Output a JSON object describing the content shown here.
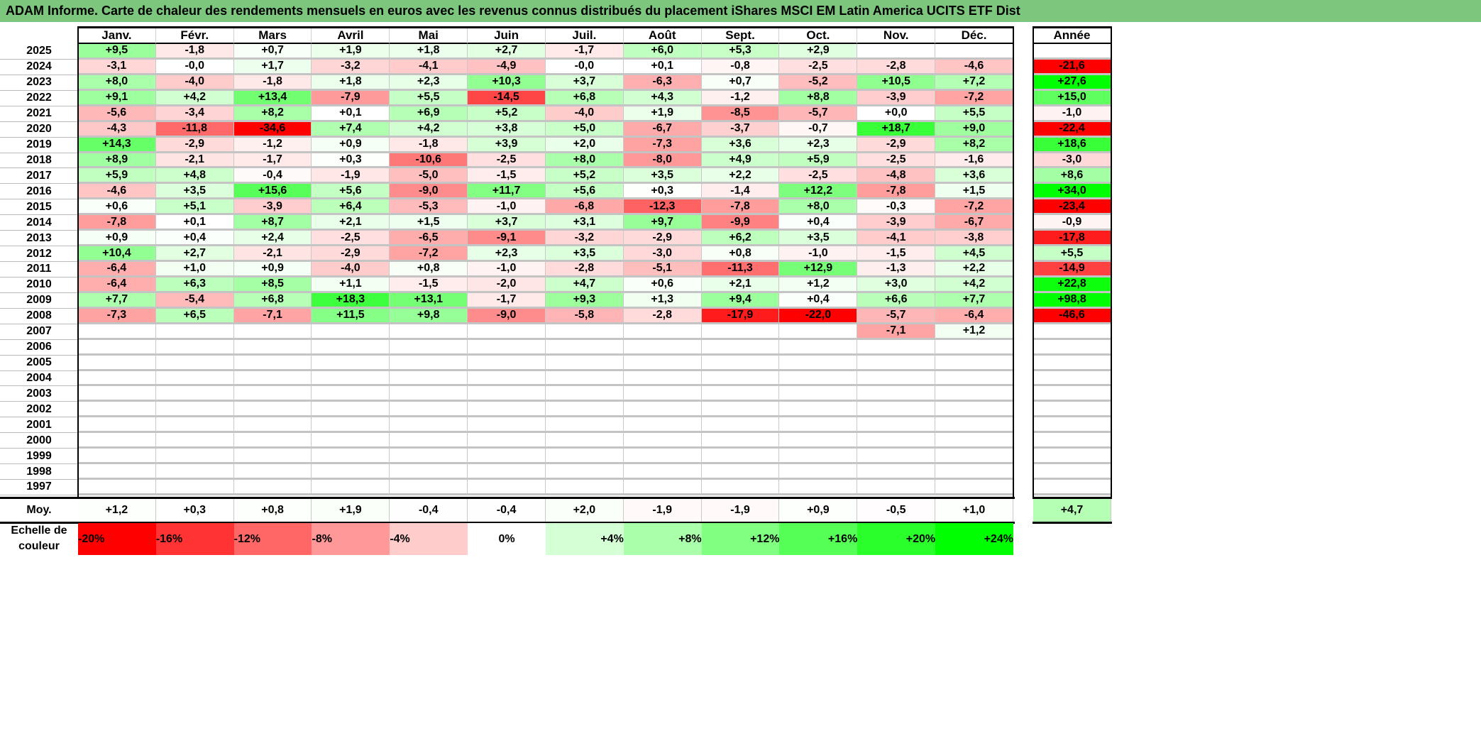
{
  "title": "ADAM Informe. Carte de chaleur des rendements mensuels en euros avec les revenus connus distribués du placement iShares MSCI EM Latin America UCITS ETF Dist",
  "months": [
    "Janv.",
    "Févr.",
    "Mars",
    "Avril",
    "Mai",
    "Juin",
    "Juil.",
    "Août",
    "Sept.",
    "Oct.",
    "Nov.",
    "Déc."
  ],
  "annual_header": "Année",
  "rows": [
    {
      "year": "2025",
      "values": [
        "+9,5",
        "-1,8",
        "+0,7",
        "+1,9",
        "+1,8",
        "+2,7",
        "-1,7",
        "+6,0",
        "+5,3",
        "+2,9",
        "",
        ""
      ],
      "annual": ""
    },
    {
      "year": "2024",
      "values": [
        "-3,1",
        "-0,0",
        "+1,7",
        "-3,2",
        "-4,1",
        "-4,9",
        "-0,0",
        "+0,1",
        "-0,8",
        "-2,5",
        "-2,8",
        "-4,6"
      ],
      "annual": "-21,6"
    },
    {
      "year": "2023",
      "values": [
        "+8,0",
        "-4,0",
        "-1,8",
        "+1,8",
        "+2,3",
        "+10,3",
        "+3,7",
        "-6,3",
        "+0,7",
        "-5,2",
        "+10,5",
        "+7,2"
      ],
      "annual": "+27,6"
    },
    {
      "year": "2022",
      "values": [
        "+9,1",
        "+4,2",
        "+13,4",
        "-7,9",
        "+5,5",
        "-14,5",
        "+6,8",
        "+4,3",
        "-1,2",
        "+8,8",
        "-3,9",
        "-7,2"
      ],
      "annual": "+15,0"
    },
    {
      "year": "2021",
      "values": [
        "-5,6",
        "-3,4",
        "+8,2",
        "+0,1",
        "+6,9",
        "+5,2",
        "-4,0",
        "+1,9",
        "-8,5",
        "-5,7",
        "+0,0",
        "+5,5"
      ],
      "annual": "-1,0"
    },
    {
      "year": "2020",
      "values": [
        "-4,3",
        "-11,8",
        "-34,6",
        "+7,4",
        "+4,2",
        "+3,8",
        "+5,0",
        "-6,7",
        "-3,7",
        "-0,7",
        "+18,7",
        "+9,0"
      ],
      "annual": "-22,4"
    },
    {
      "year": "2019",
      "values": [
        "+14,3",
        "-2,9",
        "-1,2",
        "+0,9",
        "-1,8",
        "+3,9",
        "+2,0",
        "-7,3",
        "+3,6",
        "+2,3",
        "-2,9",
        "+8,2"
      ],
      "annual": "+18,6"
    },
    {
      "year": "2018",
      "values": [
        "+8,9",
        "-2,1",
        "-1,7",
        "+0,3",
        "-10,6",
        "-2,5",
        "+8,0",
        "-8,0",
        "+4,9",
        "+5,9",
        "-2,5",
        "-1,6"
      ],
      "annual": "-3,0"
    },
    {
      "year": "2017",
      "values": [
        "+5,9",
        "+4,8",
        "-0,4",
        "-1,9",
        "-5,0",
        "-1,5",
        "+5,2",
        "+3,5",
        "+2,2",
        "-2,5",
        "-4,8",
        "+3,6"
      ],
      "annual": "+8,6"
    },
    {
      "year": "2016",
      "values": [
        "-4,6",
        "+3,5",
        "+15,6",
        "+5,6",
        "-9,0",
        "+11,7",
        "+5,6",
        "+0,3",
        "-1,4",
        "+12,2",
        "-7,8",
        "+1,5"
      ],
      "annual": "+34,0"
    },
    {
      "year": "2015",
      "values": [
        "+0,6",
        "+5,1",
        "-3,9",
        "+6,4",
        "-5,3",
        "-1,0",
        "-6,8",
        "-12,3",
        "-7,8",
        "+8,0",
        "-0,3",
        "-7,2"
      ],
      "annual": "-23,4"
    },
    {
      "year": "2014",
      "values": [
        "-7,8",
        "+0,1",
        "+8,7",
        "+2,1",
        "+1,5",
        "+3,7",
        "+3,1",
        "+9,7",
        "-9,9",
        "+0,4",
        "-3,9",
        "-6,7"
      ],
      "annual": "-0,9"
    },
    {
      "year": "2013",
      "values": [
        "+0,9",
        "+0,4",
        "+2,4",
        "-2,5",
        "-6,5",
        "-9,1",
        "-3,2",
        "-2,9",
        "+6,2",
        "+3,5",
        "-4,1",
        "-3,8"
      ],
      "annual": "-17,8"
    },
    {
      "year": "2012",
      "values": [
        "+10,4",
        "+2,7",
        "-2,1",
        "-2,9",
        "-7,2",
        "+2,3",
        "+3,5",
        "-3,0",
        "+0,8",
        "-1,0",
        "-1,5",
        "+4,5"
      ],
      "annual": "+5,5"
    },
    {
      "year": "2011",
      "values": [
        "-6,4",
        "+1,0",
        "+0,9",
        "-4,0",
        "+0,8",
        "-1,0",
        "-2,8",
        "-5,1",
        "-11,3",
        "+12,9",
        "-1,3",
        "+2,2"
      ],
      "annual": "-14,9"
    },
    {
      "year": "2010",
      "values": [
        "-6,4",
        "+6,3",
        "+8,5",
        "+1,1",
        "-1,5",
        "-2,0",
        "+4,7",
        "+0,6",
        "+2,1",
        "+1,2",
        "+3,0",
        "+4,2"
      ],
      "annual": "+22,8"
    },
    {
      "year": "2009",
      "values": [
        "+7,7",
        "-5,4",
        "+6,8",
        "+18,3",
        "+13,1",
        "-1,7",
        "+9,3",
        "+1,3",
        "+9,4",
        "+0,4",
        "+6,6",
        "+7,7"
      ],
      "annual": "+98,8"
    },
    {
      "year": "2008",
      "values": [
        "-7,3",
        "+6,5",
        "-7,1",
        "+11,5",
        "+9,8",
        "-9,0",
        "-5,8",
        "-2,8",
        "-17,9",
        "-22,0",
        "-5,7",
        "-6,4"
      ],
      "annual": "-46,6"
    },
    {
      "year": "2007",
      "values": [
        "",
        "",
        "",
        "",
        "",
        "",
        "",
        "",
        "",
        "",
        "-7,1",
        "+1,2"
      ],
      "annual": ""
    },
    {
      "year": "2006",
      "values": [
        "",
        "",
        "",
        "",
        "",
        "",
        "",
        "",
        "",
        "",
        "",
        ""
      ],
      "annual": ""
    },
    {
      "year": "2005",
      "values": [
        "",
        "",
        "",
        "",
        "",
        "",
        "",
        "",
        "",
        "",
        "",
        ""
      ],
      "annual": ""
    },
    {
      "year": "2004",
      "values": [
        "",
        "",
        "",
        "",
        "",
        "",
        "",
        "",
        "",
        "",
        "",
        ""
      ],
      "annual": ""
    },
    {
      "year": "2003",
      "values": [
        "",
        "",
        "",
        "",
        "",
        "",
        "",
        "",
        "",
        "",
        "",
        ""
      ],
      "annual": ""
    },
    {
      "year": "2002",
      "values": [
        "",
        "",
        "",
        "",
        "",
        "",
        "",
        "",
        "",
        "",
        "",
        ""
      ],
      "annual": ""
    },
    {
      "year": "2001",
      "values": [
        "",
        "",
        "",
        "",
        "",
        "",
        "",
        "",
        "",
        "",
        "",
        ""
      ],
      "annual": ""
    },
    {
      "year": "2000",
      "values": [
        "",
        "",
        "",
        "",
        "",
        "",
        "",
        "",
        "",
        "",
        "",
        ""
      ],
      "annual": ""
    },
    {
      "year": "1999",
      "values": [
        "",
        "",
        "",
        "",
        "",
        "",
        "",
        "",
        "",
        "",
        "",
        ""
      ],
      "annual": ""
    },
    {
      "year": "1998",
      "values": [
        "",
        "",
        "",
        "",
        "",
        "",
        "",
        "",
        "",
        "",
        "",
        ""
      ],
      "annual": ""
    },
    {
      "year": "1997",
      "values": [
        "",
        "",
        "",
        "",
        "",
        "",
        "",
        "",
        "",
        "",
        "",
        ""
      ],
      "annual": ""
    }
  ],
  "average": {
    "label": "Moy.",
    "values": [
      "+1,2",
      "+0,3",
      "+0,8",
      "+1,9",
      "-0,4",
      "-0,4",
      "+2,0",
      "-1,9",
      "-1,9",
      "+0,9",
      "-0,5",
      "+1,0"
    ],
    "annual": "+4,7"
  },
  "scale": {
    "label": "Echelle de couleur",
    "steps": [
      {
        "label": "-20%",
        "color": "#ff0000"
      },
      {
        "label": "-16%",
        "color": "#ff3333"
      },
      {
        "label": "-12%",
        "color": "#ff6666"
      },
      {
        "label": "-8%",
        "color": "#ff9999"
      },
      {
        "label": "-4%",
        "color": "#ffcccc"
      },
      {
        "label": "0%",
        "color": "#ffffff"
      },
      {
        "label": "+4%",
        "color": "#d5ffd5"
      },
      {
        "label": "+8%",
        "color": "#aaffaa"
      },
      {
        "label": "+12%",
        "color": "#80ff80"
      },
      {
        "label": "+16%",
        "color": "#55ff55"
      },
      {
        "label": "+20%",
        "color": "#2bff2b"
      },
      {
        "label": "+24%",
        "color": "#00ff00"
      }
    ]
  },
  "colors": {
    "title_bar": "#7dc67d",
    "negative_max": "#ff0000",
    "positive_max": "#00ff00"
  }
}
